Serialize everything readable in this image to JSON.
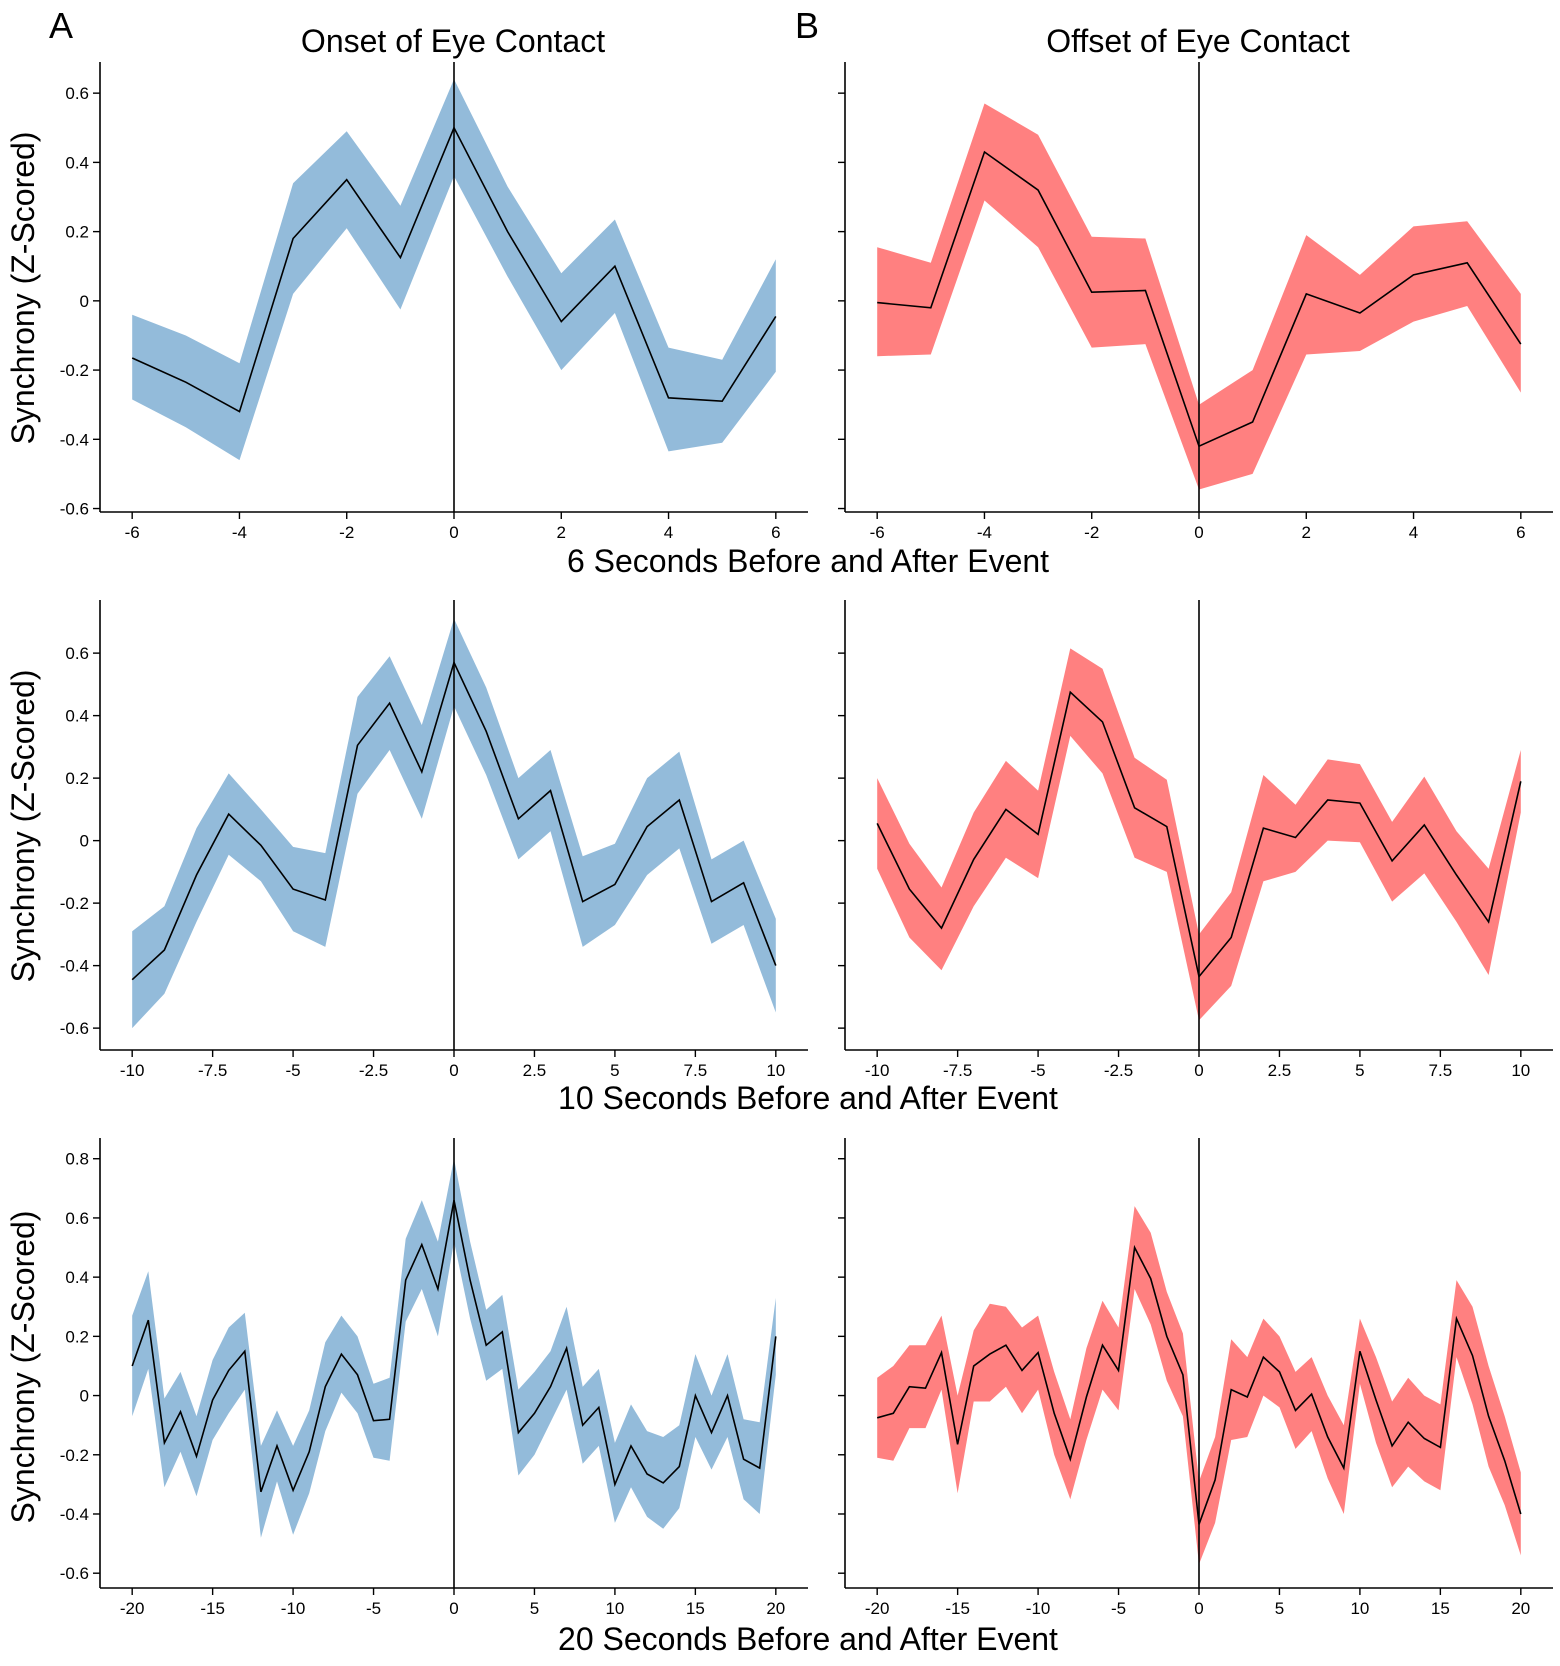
{
  "panel_letters": [
    "A",
    "B"
  ],
  "column_titles": [
    "Onset of Eye Contact",
    "Offset of Eye Contact"
  ],
  "row_xlabels": [
    "6 Seconds Before and After Event",
    "10 Seconds Before and After Event",
    "20 Seconds Before and After Event"
  ],
  "ylabel": "Synchrony (Z-Scored)",
  "colors": {
    "onset_band": "#93bbda",
    "offset_band": "#ff8080",
    "mean_line": "#000000"
  },
  "chart_data": [
    {
      "type": "line",
      "panel": "A",
      "row": 0,
      "xlim": [
        -6.6,
        6.6
      ],
      "ylim": [
        -0.61,
        0.69
      ],
      "xticks": [
        -6,
        -4,
        -2,
        0,
        2,
        4,
        6
      ],
      "xtick_labels": [
        "-6",
        "-4",
        "-2",
        "0",
        "2",
        "4",
        "6"
      ],
      "yticks": [
        0.6,
        0.4,
        0.2,
        0,
        -0.2,
        -0.4,
        -0.6
      ],
      "ytick_labels": [
        "0.6",
        "0.4",
        "0.2",
        "0",
        "-0.2",
        "-0.4",
        "-0.6"
      ],
      "show_ytick_labels": true,
      "x": [
        -6,
        -5,
        -4,
        -3,
        -2,
        -1,
        0,
        1,
        2,
        3,
        4,
        5,
        6
      ],
      "mean": [
        -0.165,
        -0.235,
        -0.32,
        0.18,
        0.35,
        0.125,
        0.5,
        0.2,
        -0.06,
        0.1,
        -0.28,
        -0.29,
        -0.045
      ],
      "upper": [
        -0.04,
        -0.1,
        -0.18,
        0.34,
        0.49,
        0.275,
        0.64,
        0.33,
        0.08,
        0.235,
        -0.135,
        -0.17,
        0.12
      ],
      "lower": [
        -0.285,
        -0.365,
        -0.46,
        0.02,
        0.21,
        -0.025,
        0.36,
        0.07,
        -0.2,
        -0.035,
        -0.435,
        -0.41,
        -0.205
      ],
      "band_color": "#93bbda"
    },
    {
      "type": "line",
      "panel": "B",
      "row": 0,
      "xlim": [
        -6.6,
        6.6
      ],
      "ylim": [
        -0.61,
        0.69
      ],
      "xticks": [
        -6,
        -4,
        -2,
        0,
        2,
        4,
        6
      ],
      "xtick_labels": [
        "-6",
        "-4",
        "-2",
        "0",
        "2",
        "4",
        "6"
      ],
      "yticks": [
        0.6,
        0.4,
        0.2,
        0,
        -0.2,
        -0.4,
        -0.6
      ],
      "show_ytick_labels": false,
      "x": [
        -6,
        -5,
        -4,
        -3,
        -2,
        -1,
        0,
        1,
        2,
        3,
        4,
        5,
        6
      ],
      "mean": [
        -0.005,
        -0.02,
        0.43,
        0.32,
        0.025,
        0.03,
        -0.42,
        -0.35,
        0.02,
        -0.035,
        0.075,
        0.11,
        -0.125
      ],
      "upper": [
        0.155,
        0.11,
        0.57,
        0.48,
        0.185,
        0.18,
        -0.3,
        -0.2,
        0.19,
        0.075,
        0.215,
        0.23,
        0.02
      ],
      "lower": [
        -0.16,
        -0.155,
        0.29,
        0.155,
        -0.135,
        -0.125,
        -0.545,
        -0.5,
        -0.155,
        -0.145,
        -0.06,
        -0.015,
        -0.265
      ],
      "band_color": "#ff8080"
    },
    {
      "type": "line",
      "panel": "A",
      "row": 1,
      "xlim": [
        -11,
        11
      ],
      "ylim": [
        -0.67,
        0.77
      ],
      "xticks": [
        -10,
        -7.5,
        -5,
        -2.5,
        0,
        2.5,
        5,
        7.5,
        10
      ],
      "xtick_labels": [
        "-10",
        "-7.5",
        "-5",
        "-2.5",
        "0",
        "2.5",
        "5",
        "7.5",
        "10"
      ],
      "yticks": [
        0.6,
        0.4,
        0.2,
        0,
        -0.2,
        -0.4,
        -0.6
      ],
      "ytick_labels": [
        "0.6",
        "0.4",
        "0.2",
        "0",
        "-0.2",
        "-0.4",
        "-0.6"
      ],
      "show_ytick_labels": true,
      "x": [
        -10,
        -9,
        -8,
        -7,
        -6,
        -5,
        -4,
        -3,
        -2,
        -1,
        0,
        1,
        2,
        3,
        4,
        5,
        6,
        7,
        8,
        9,
        10
      ],
      "mean": [
        -0.445,
        -0.35,
        -0.11,
        0.085,
        -0.015,
        -0.155,
        -0.19,
        0.305,
        0.44,
        0.22,
        0.57,
        0.35,
        0.07,
        0.16,
        -0.195,
        -0.14,
        0.045,
        0.13,
        -0.195,
        -0.135,
        -0.4
      ],
      "upper": [
        -0.29,
        -0.21,
        0.04,
        0.215,
        0.1,
        -0.02,
        -0.04,
        0.46,
        0.59,
        0.37,
        0.71,
        0.49,
        0.2,
        0.29,
        -0.05,
        -0.01,
        0.2,
        0.285,
        -0.06,
        0.0,
        -0.25
      ],
      "lower": [
        -0.6,
        -0.49,
        -0.26,
        -0.045,
        -0.13,
        -0.29,
        -0.34,
        0.15,
        0.29,
        0.07,
        0.43,
        0.21,
        -0.06,
        0.03,
        -0.34,
        -0.27,
        -0.11,
        -0.025,
        -0.33,
        -0.27,
        -0.55
      ],
      "band_color": "#93bbda"
    },
    {
      "type": "line",
      "panel": "B",
      "row": 1,
      "xlim": [
        -11,
        11
      ],
      "ylim": [
        -0.67,
        0.77
      ],
      "xticks": [
        -10,
        -7.5,
        -5,
        -2.5,
        0,
        2.5,
        5,
        7.5,
        10
      ],
      "xtick_labels": [
        "-10",
        "-7.5",
        "-5",
        "-2.5",
        "0",
        "2.5",
        "5",
        "7.5",
        "10"
      ],
      "yticks": [
        0.6,
        0.4,
        0.2,
        0,
        -0.2,
        -0.4,
        -0.6
      ],
      "show_ytick_labels": false,
      "x": [
        -10,
        -9,
        -8,
        -7,
        -6,
        -5,
        -4,
        -3,
        -2,
        -1,
        0,
        1,
        2,
        3,
        4,
        5,
        6,
        7,
        8,
        9,
        10
      ],
      "mean": [
        0.055,
        -0.155,
        -0.28,
        -0.06,
        0.1,
        0.02,
        0.475,
        0.38,
        0.105,
        0.045,
        -0.435,
        -0.31,
        0.04,
        0.01,
        0.13,
        0.12,
        -0.065,
        0.05,
        -0.11,
        -0.26,
        0.19
      ],
      "upper": [
        0.2,
        -0.01,
        -0.15,
        0.09,
        0.255,
        0.16,
        0.615,
        0.55,
        0.265,
        0.195,
        -0.3,
        -0.165,
        0.21,
        0.115,
        0.26,
        0.245,
        0.06,
        0.205,
        0.03,
        -0.09,
        0.29
      ],
      "lower": [
        -0.09,
        -0.31,
        -0.415,
        -0.21,
        -0.055,
        -0.12,
        0.335,
        0.215,
        -0.055,
        -0.1,
        -0.575,
        -0.465,
        -0.13,
        -0.1,
        0.0,
        -0.005,
        -0.195,
        -0.105,
        -0.26,
        -0.43,
        0.09
      ],
      "band_color": "#ff8080"
    },
    {
      "type": "line",
      "panel": "A",
      "row": 2,
      "xlim": [
        -22,
        22
      ],
      "ylim": [
        -0.65,
        0.87
      ],
      "xticks": [
        -20,
        -15,
        -10,
        -5,
        0,
        5,
        10,
        15,
        20
      ],
      "xtick_labels": [
        "-20",
        "-15",
        "-10",
        "-5",
        "0",
        "5",
        "10",
        "15",
        "20"
      ],
      "yticks": [
        0.8,
        0.6,
        0.4,
        0.2,
        0,
        -0.2,
        -0.4,
        -0.6
      ],
      "ytick_labels": [
        "0.8",
        "0.6",
        "0.4",
        "0.2",
        "0",
        "-0.2",
        "-0.4",
        "-0.6"
      ],
      "show_ytick_labels": true,
      "x": [
        -20,
        -19,
        -18,
        -17,
        -16,
        -15,
        -14,
        -13,
        -12,
        -11,
        -10,
        -9,
        -8,
        -7,
        -6,
        -5,
        -4,
        -3,
        -2,
        -1,
        0,
        1,
        2,
        3,
        4,
        5,
        6,
        7,
        8,
        9,
        10,
        11,
        12,
        13,
        14,
        15,
        16,
        17,
        18,
        19,
        20
      ],
      "mean": [
        0.1,
        0.255,
        -0.16,
        -0.055,
        -0.205,
        -0.015,
        0.085,
        0.15,
        -0.325,
        -0.17,
        -0.32,
        -0.19,
        0.03,
        0.14,
        0.07,
        -0.085,
        -0.08,
        0.39,
        0.51,
        0.36,
        0.66,
        0.39,
        0.17,
        0.215,
        -0.125,
        -0.06,
        0.03,
        0.16,
        -0.1,
        -0.04,
        -0.3,
        -0.17,
        -0.265,
        -0.295,
        -0.24,
        0.0,
        -0.125,
        0.0,
        -0.215,
        -0.245,
        0.2
      ],
      "upper": [
        0.27,
        0.42,
        -0.01,
        0.08,
        -0.07,
        0.12,
        0.23,
        0.28,
        -0.17,
        -0.05,
        -0.17,
        -0.05,
        0.18,
        0.27,
        0.2,
        0.04,
        0.06,
        0.53,
        0.66,
        0.52,
        0.8,
        0.52,
        0.29,
        0.34,
        0.02,
        0.08,
        0.15,
        0.3,
        0.03,
        0.09,
        -0.16,
        -0.03,
        -0.12,
        -0.14,
        -0.1,
        0.14,
        0.0,
        0.14,
        -0.08,
        -0.09,
        0.33
      ],
      "lower": [
        -0.07,
        0.09,
        -0.31,
        -0.19,
        -0.34,
        -0.15,
        -0.06,
        0.02,
        -0.48,
        -0.29,
        -0.47,
        -0.33,
        -0.12,
        0.01,
        -0.06,
        -0.21,
        -0.22,
        0.25,
        0.36,
        0.2,
        0.52,
        0.26,
        0.05,
        0.09,
        -0.27,
        -0.2,
        -0.09,
        0.02,
        -0.23,
        -0.17,
        -0.43,
        -0.31,
        -0.41,
        -0.45,
        -0.38,
        -0.14,
        -0.25,
        -0.14,
        -0.35,
        -0.4,
        0.07
      ],
      "band_color": "#93bbda"
    },
    {
      "type": "line",
      "panel": "B",
      "row": 2,
      "xlim": [
        -22,
        22
      ],
      "ylim": [
        -0.65,
        0.87
      ],
      "xticks": [
        -20,
        -15,
        -10,
        -5,
        0,
        5,
        10,
        15,
        20
      ],
      "xtick_labels": [
        "-20",
        "-15",
        "-10",
        "-5",
        "0",
        "5",
        "10",
        "15",
        "20"
      ],
      "yticks": [
        0.8,
        0.6,
        0.4,
        0.2,
        0,
        -0.2,
        -0.4,
        -0.6
      ],
      "show_ytick_labels": false,
      "x": [
        -20,
        -19,
        -18,
        -17,
        -16,
        -15,
        -14,
        -13,
        -12,
        -11,
        -10,
        -9,
        -8,
        -7,
        -6,
        -5,
        -4,
        -3,
        -2,
        -1,
        0,
        1,
        2,
        3,
        4,
        5,
        6,
        7,
        8,
        9,
        10,
        11,
        12,
        13,
        14,
        15,
        16,
        17,
        18,
        19,
        20
      ],
      "mean": [
        -0.075,
        -0.06,
        0.03,
        0.025,
        0.145,
        -0.165,
        0.1,
        0.14,
        0.17,
        0.085,
        0.145,
        -0.06,
        -0.215,
        -0.005,
        0.17,
        0.085,
        0.5,
        0.395,
        0.2,
        0.07,
        -0.435,
        -0.285,
        0.02,
        -0.005,
        0.13,
        0.08,
        -0.05,
        0.005,
        -0.14,
        -0.245,
        0.15,
        -0.015,
        -0.17,
        -0.09,
        -0.145,
        -0.175,
        0.26,
        0.135,
        -0.07,
        -0.22,
        -0.4
      ],
      "upper": [
        0.06,
        0.1,
        0.17,
        0.17,
        0.27,
        0.0,
        0.22,
        0.31,
        0.3,
        0.23,
        0.27,
        0.08,
        -0.08,
        0.16,
        0.32,
        0.23,
        0.64,
        0.55,
        0.35,
        0.21,
        -0.29,
        -0.14,
        0.19,
        0.13,
        0.26,
        0.2,
        0.08,
        0.13,
        0.0,
        -0.1,
        0.26,
        0.13,
        -0.02,
        0.06,
        0.0,
        -0.03,
        0.39,
        0.3,
        0.1,
        -0.07,
        -0.26
      ],
      "lower": [
        -0.21,
        -0.22,
        -0.11,
        -0.11,
        0.02,
        -0.33,
        -0.02,
        -0.02,
        0.03,
        -0.06,
        0.02,
        -0.2,
        -0.35,
        -0.15,
        0.02,
        -0.05,
        0.36,
        0.24,
        0.05,
        -0.07,
        -0.57,
        -0.43,
        -0.15,
        -0.14,
        0.0,
        -0.04,
        -0.18,
        -0.12,
        -0.28,
        -0.4,
        0.04,
        -0.16,
        -0.31,
        -0.24,
        -0.29,
        -0.32,
        0.13,
        -0.03,
        -0.24,
        -0.37,
        -0.54
      ],
      "band_color": "#ff8080"
    }
  ]
}
